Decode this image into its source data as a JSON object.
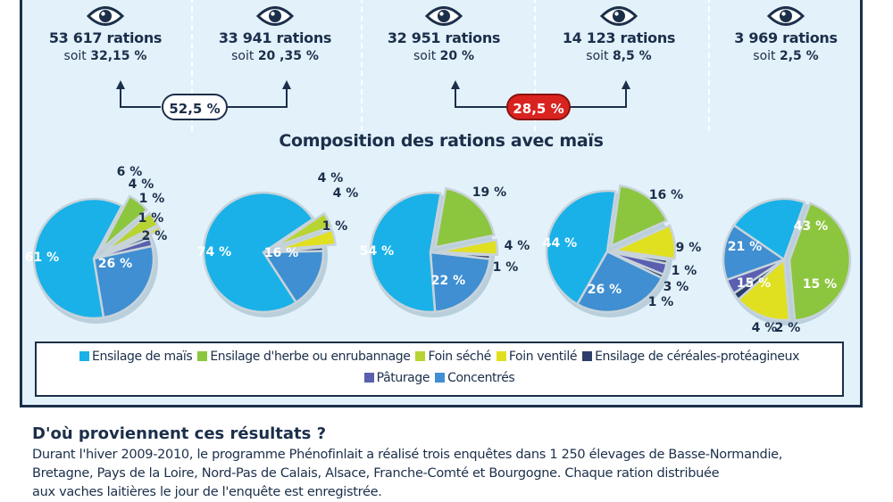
{
  "stats": [
    {
      "count": "53 617 rations",
      "pct_prefix": "soit ",
      "pct_value": "32,15 %"
    },
    {
      "count": "33 941 rations",
      "pct_prefix": "soit ",
      "pct_value": "20 ,35 %"
    },
    {
      "count": "32 951 rations",
      "pct_prefix": "soit ",
      "pct_value": "20 %"
    },
    {
      "count": "14 123 rations",
      "pct_prefix": "soit ",
      "pct_value": "8,5 %"
    },
    {
      "count": "3 969 rations",
      "pct_prefix": "soit ",
      "pct_value": "2,5 %"
    }
  ],
  "groups": [
    {
      "label": "52,5 %",
      "color": "#ffffff",
      "text_color": "#1b2f4a"
    },
    {
      "label": "28,5 %",
      "color": "#d9231f",
      "text_color": "#ffffff"
    }
  ],
  "colors": {
    "panel": "#e3f1fa",
    "navy": "#1b2f4a",
    "ensilage_mais": "#1ab1e8",
    "ensilage_herbe": "#8cc63f",
    "foin_seche": "#b8d432",
    "foin_ventile": "#e0e020",
    "ensilage_cereales": "#2c3e6b",
    "paturage": "#5a5fb0",
    "concentres": "#3f8fd2"
  },
  "chart_data": {
    "type": "pie",
    "title": "Composition des rations avec maïs",
    "legend": [
      {
        "name": "Ensilage de maïs",
        "color": "#1ab1e8"
      },
      {
        "name": "Ensilage d'herbe ou enrubannage",
        "color": "#8cc63f"
      },
      {
        "name": "Foin séché",
        "color": "#b8d432"
      },
      {
        "name": "Foin ventilé",
        "color": "#e0e020"
      },
      {
        "name": "Ensilage de céréales-protéagineux",
        "color": "#2c3e6b"
      },
      {
        "name": "Pâturage",
        "color": "#5a5fb0"
      },
      {
        "name": "Concentrés",
        "color": "#3f8fd2"
      }
    ],
    "legend_placement": "bottom",
    "pies": [
      {
        "slices": [
          {
            "category": "Ensilage d'herbe ou enrubannage",
            "value": 6,
            "label": "6 %"
          },
          {
            "category": "Foin séché",
            "value": 4,
            "label": "4 %"
          },
          {
            "category": "Foin ventilé",
            "value": 1,
            "label": "1 %"
          },
          {
            "category": "Ensilage de céréales-protéagineux",
            "value": 1,
            "label": "1 %"
          },
          {
            "category": "Pâturage",
            "value": 2,
            "label": "2 %"
          },
          {
            "category": "Concentrés",
            "value": 26,
            "label": "26 %"
          },
          {
            "category": "Ensilage de maïs",
            "value": 61,
            "label": "61 %"
          }
        ]
      },
      {
        "slices": [
          {
            "category": "Foin séché",
            "value": 4,
            "label": "4 %"
          },
          {
            "category": "Foin ventilé",
            "value": 4,
            "label": "4 %"
          },
          {
            "category": "Ensilage de céréales-protéagineux",
            "value": 1,
            "label": "1 %"
          },
          {
            "category": "Concentrés",
            "value": 16,
            "label": "16 %"
          },
          {
            "category": "Ensilage de maïs",
            "value": 74,
            "label": "74 %"
          }
        ]
      },
      {
        "slices": [
          {
            "category": "Ensilage d'herbe ou enrubannage",
            "value": 19,
            "label": "19 %"
          },
          {
            "category": "Foin ventilé",
            "value": 4,
            "label": "4 %"
          },
          {
            "category": "Ensilage de céréales-protéagineux",
            "value": 1,
            "label": "1 %"
          },
          {
            "category": "Concentrés",
            "value": 22,
            "label": "22 %"
          },
          {
            "category": "Ensilage de maïs",
            "value": 54,
            "label": "54 %"
          }
        ]
      },
      {
        "slices": [
          {
            "category": "Ensilage d'herbe ou enrubannage",
            "value": 16,
            "label": "16 %"
          },
          {
            "category": "Foin ventilé",
            "value": 9,
            "label": "9 %"
          },
          {
            "category": "Ensilage de céréales-protéagineux",
            "value": 1,
            "label": "1 %"
          },
          {
            "category": "Pâturage",
            "value": 3,
            "label": "3 %"
          },
          {
            "category": "Ensilage de céréales-protéagineux",
            "value": 1,
            "label": "1 %"
          },
          {
            "category": "Concentrés",
            "value": 26,
            "label": "26 %"
          },
          {
            "category": "Ensilage de maïs",
            "value": 44,
            "label": "44 %"
          }
        ]
      },
      {
        "slices": [
          {
            "category": "Ensilage d'herbe ou enrubannage",
            "value": 43,
            "label": "43 %"
          },
          {
            "category": "Foin ventilé",
            "value": 15,
            "label": "15 %"
          },
          {
            "category": "Ensilage de céréales-protéagineux",
            "value": 2,
            "label": "2 %"
          },
          {
            "category": "Pâturage",
            "value": 4,
            "label": "4 %"
          },
          {
            "category": "Concentrés",
            "value": 15,
            "label": "15 %"
          },
          {
            "category": "Ensilage de maïs",
            "value": 21,
            "label": "21 %"
          }
        ]
      }
    ]
  },
  "article": {
    "heading": "D'où proviennent ces résultats ?",
    "lines": [
      "Durant l'hiver 2009-2010, le programme Phénofinlait a réalisé trois enquêtes dans 1 250 élevages de Basse-Normandie,",
      "Bretagne, Pays de la Loire, Nord-Pas de Calais, Alsace, Franche-Comté et Bourgogne. Chaque ration distribuée",
      "aux vaches laitières le jour de l'enquête est enregistrée."
    ]
  }
}
